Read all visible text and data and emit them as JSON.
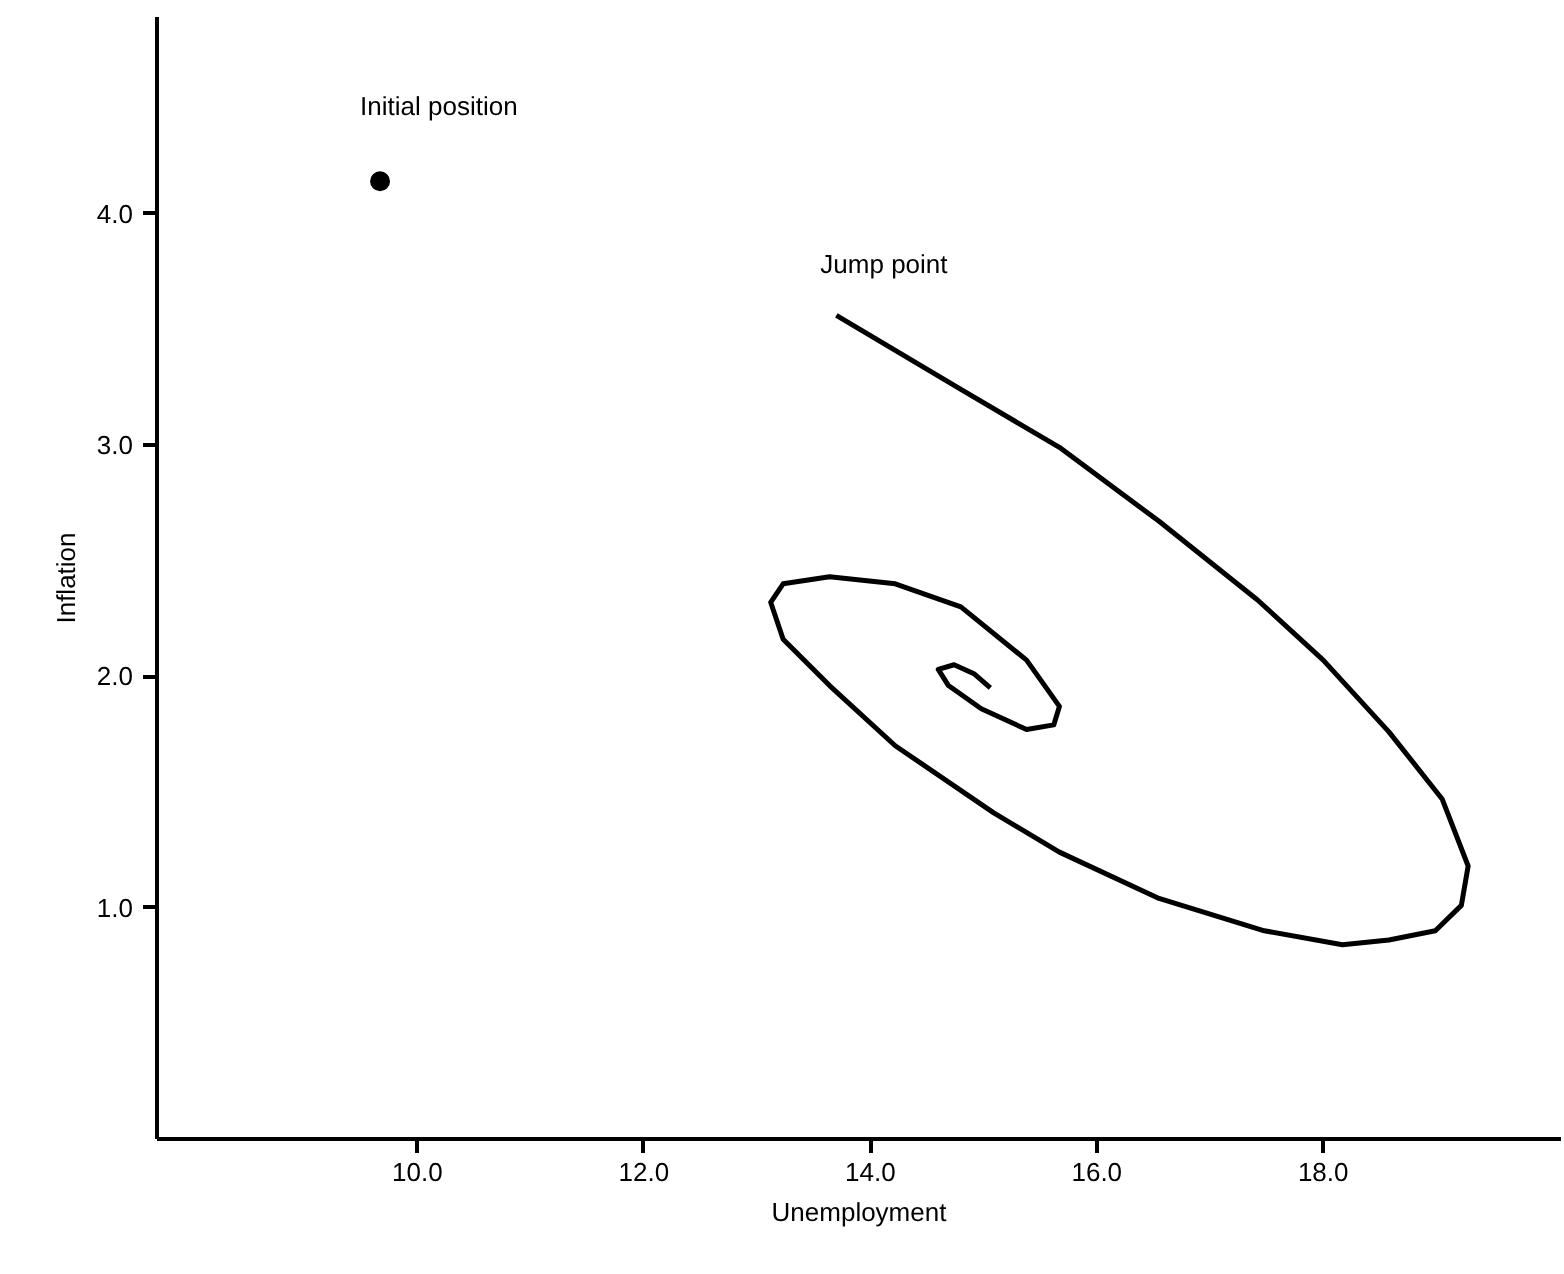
{
  "chart_data": {
    "type": "line",
    "xlabel": "Unemployment",
    "ylabel": "Inflation",
    "xlim": [
      7.7,
      20.1
    ],
    "ylim": [
      0,
      4.85
    ],
    "xticks": [
      {
        "value": 10,
        "label": "10.0"
      },
      {
        "value": 12,
        "label": "12.0"
      },
      {
        "value": 14,
        "label": "14.0"
      },
      {
        "value": 16,
        "label": "16.0"
      },
      {
        "value": 18,
        "label": "18.0"
      }
    ],
    "yticks": [
      {
        "value": 1,
        "label": "1.0"
      },
      {
        "value": 2,
        "label": "2.0"
      },
      {
        "value": 3,
        "label": "3.0"
      },
      {
        "value": 4,
        "label": "4.0"
      }
    ],
    "grid": false,
    "series": [
      {
        "color": "#000000",
        "x": [
          13.7,
          14.8,
          15.67,
          16.55,
          17.42,
          18.0,
          18.58,
          19.05,
          19.28,
          19.22,
          18.99,
          18.58,
          18.17,
          17.48,
          16.55,
          15.67,
          15.09,
          14.22,
          13.64,
          13.23,
          13.12,
          13.23,
          13.64,
          14.22,
          14.8,
          15.38,
          15.67,
          15.62,
          15.38,
          14.98,
          14.69,
          14.6,
          14.74,
          14.92,
          15.06
        ],
        "values": [
          3.56,
          3.24,
          2.99,
          2.67,
          2.33,
          2.07,
          1.76,
          1.47,
          1.18,
          1.01,
          0.9,
          0.86,
          0.84,
          0.9,
          1.04,
          1.24,
          1.41,
          1.7,
          1.96,
          2.16,
          2.32,
          2.4,
          2.43,
          2.4,
          2.3,
          2.07,
          1.87,
          1.79,
          1.77,
          1.86,
          1.96,
          2.03,
          2.05,
          2.01,
          1.95
        ]
      },
      {
        "type": "scatter",
        "color": "#000000",
        "marker": "circle",
        "x": [
          9.67
        ],
        "values": [
          4.14
        ]
      }
    ],
    "annotations": [
      {
        "text": "Initial position",
        "x": 9.67,
        "y": 4.14
      },
      {
        "text": "Jump point",
        "x": 13.7,
        "y": 3.56
      }
    ]
  }
}
